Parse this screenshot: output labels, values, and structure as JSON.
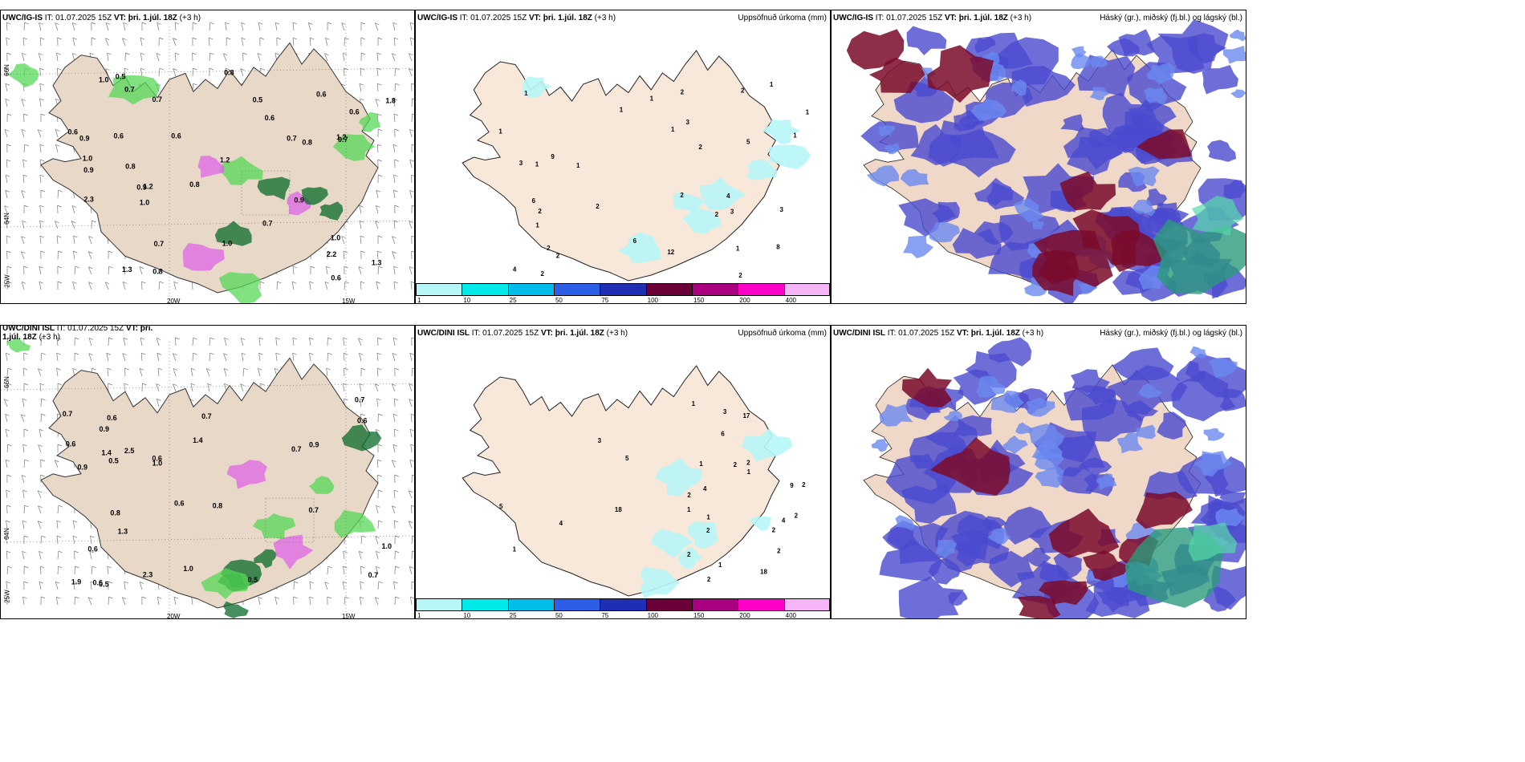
{
  "rows": [
    {
      "model": "UWC/IG-IS",
      "wind_panel": {
        "title_model": "UWC/IG-IS",
        "it_label": "IT: 01.07.2025 15Z",
        "vt_label": "VT: þri. 1.júl. 18Z",
        "lead": "(+3 h)",
        "values": [
          "0.6",
          "0.7",
          "0.6",
          "0.8",
          "1.0",
          "1.2",
          "1.0",
          "0.5",
          "0.6",
          "1.3",
          "0.6",
          "0.8",
          "0.9",
          "1.0",
          "0.8",
          "0.9",
          "1.3",
          "1.2",
          "1.0",
          "0.6",
          "0.6",
          "0.7",
          "0.7",
          "2.3",
          "1.8",
          "0.7",
          "1.0",
          "0.9",
          "1.2",
          "0.6",
          "0.7",
          "0.9",
          "0.5",
          "2.2",
          "0.8",
          "0.8",
          "0.7"
        ],
        "lon_labels": [
          "20W",
          "15W"
        ],
        "lat_labels": [
          "66N",
          "64N",
          "25W"
        ]
      },
      "precip_panel": {
        "title_model": "UWC/IG-IS",
        "it_label": "IT: 01.07.2025 15Z",
        "vt_label": "VT: þri. 1.júl. 18Z",
        "lead": "(+3 h)",
        "right_title": "Uppsöfnuð úrkoma (mm)",
        "values": [
          "2",
          "2",
          "1",
          "2",
          "2",
          "1",
          "1",
          "2",
          "2",
          "1",
          "1",
          "4",
          "1",
          "3",
          "1",
          "1",
          "2",
          "2",
          "6",
          "9",
          "6",
          "5",
          "8",
          "12",
          "3",
          "1",
          "1",
          "2",
          "1",
          "4",
          "3",
          "3",
          "2",
          "2",
          "1"
        ],
        "legend": [
          "1",
          "10",
          "25",
          "50",
          "75",
          "100",
          "150",
          "200",
          "400"
        ],
        "legend_colors": [
          "#b7f6f6",
          "#00eaea",
          "#00bdea",
          "#2c5fe6",
          "#1e2fb4",
          "#6a0037",
          "#a8007f",
          "#ff00c8",
          "#f5b4f5"
        ]
      },
      "cloud_panel": {
        "title_model": "UWC/IG-IS",
        "it_label": "IT: 01.07.2025 15Z",
        "vt_label": "VT: þri. 1.júl. 18Z",
        "lead": "(+3 h)",
        "right_title": "Háský (gr.), miðský (fj.bl.) og lágský (bl.)"
      }
    },
    {
      "model": "UWC/DINI ISL",
      "wind_panel": {
        "title_model": "UWC/DINI ISL",
        "it_label": "IT: 01.07.2025 15Z",
        "vt_label": "VT: þri. 1.júl. 18Z",
        "lead": "(+3 h)",
        "values": [
          "0.8",
          "0.7",
          "0.5",
          "0.9",
          "0.6",
          "1.0",
          "0.6",
          "0.7",
          "0.6",
          "0.5",
          "0.7",
          "1.3",
          "0.8",
          "1.0",
          "1.4",
          "0.9",
          "0.7",
          "1.0",
          "0.6",
          "0.7",
          "0.5",
          "0.6",
          "0.7",
          "0.6",
          "0.9",
          "2.3",
          "2.5",
          "1.4",
          "0.6",
          "1.9"
        ],
        "lon_labels": [
          "20W",
          "15W"
        ],
        "lat_labels": [
          "66N",
          "64N",
          "25W"
        ]
      },
      "precip_panel": {
        "title_model": "UWC/DINI ISL",
        "it_label": "IT: 01.07.2025 15Z",
        "vt_label": "VT: þri. 1.júl. 18Z",
        "lead": "(+3 h)",
        "right_title": "Uppsöfnuð úrkoma (mm)",
        "values": [
          "2",
          "2",
          "2",
          "1",
          "4",
          "2",
          "2",
          "2",
          "6",
          "2",
          "5",
          "2",
          "1",
          "4",
          "2",
          "2",
          "1",
          "4",
          "18",
          "17",
          "5",
          "3",
          "3",
          "18",
          "9",
          "1",
          "1",
          "1",
          "1"
        ],
        "legend": [
          "1",
          "10",
          "25",
          "50",
          "75",
          "100",
          "150",
          "200",
          "400"
        ],
        "legend_colors": [
          "#b7f6f6",
          "#00eaea",
          "#00bdea",
          "#2c5fe6",
          "#1e2fb4",
          "#6a0037",
          "#a8007f",
          "#ff00c8",
          "#f5b4f5"
        ]
      },
      "cloud_panel": {
        "title_model": "UWC/DINI ISL",
        "it_label": "IT: 01.07.2025 15Z",
        "vt_label": "VT: þri. 1.júl. 18Z",
        "lead": "(+3 h)",
        "right_title": "Háský (gr.), miðský (fj.bl.) og lágský (bl.)"
      }
    }
  ],
  "colors": {
    "land": "#f8e8da",
    "land_wind": "#e8d8c8",
    "green": "#55d855",
    "dgreen": "#0a6a2a",
    "magenta": "#dd66e6",
    "cyan": "#b7f6f6",
    "cloud_blue": "#4a4ad0",
    "cloud_light": "#6a8af0",
    "cloud_dark": "#7a0a2a",
    "cloud_green": "#2a9a7a"
  }
}
